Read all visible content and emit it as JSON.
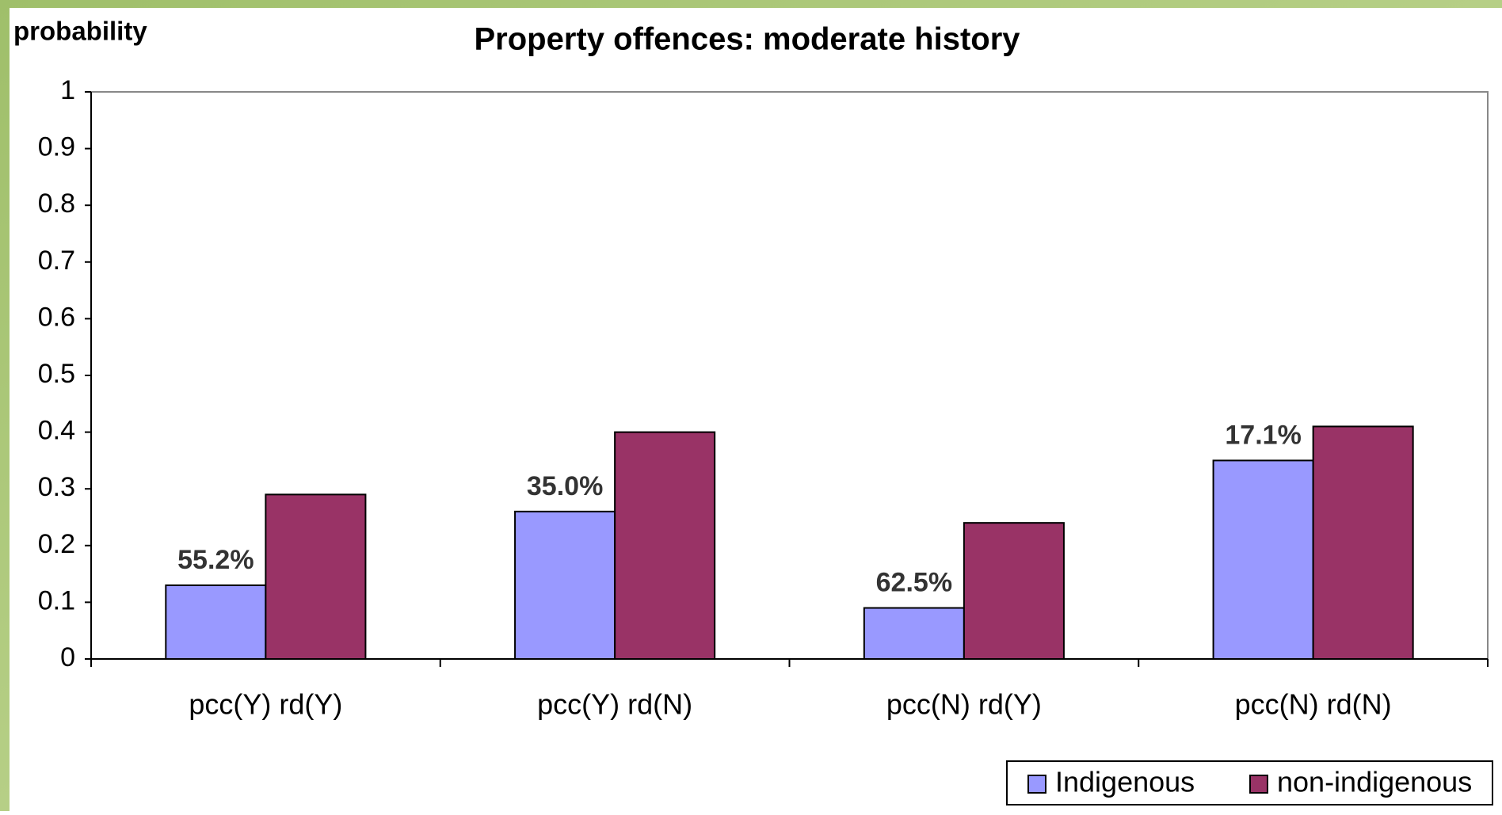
{
  "chart_data": {
    "type": "bar",
    "title": "Property offences: moderate history",
    "y_label": "probability",
    "categories": [
      "pcc(Y) rd(Y)",
      "pcc(Y) rd(N)",
      "pcc(N) rd(Y)",
      "pcc(N) rd(N)"
    ],
    "series": [
      {
        "name": "Indigenous",
        "color": "#9999ff",
        "values": [
          0.13,
          0.26,
          0.09,
          0.35
        ]
      },
      {
        "name": "non-indigenous",
        "color": "#993366",
        "values": [
          0.29,
          0.4,
          0.24,
          0.41
        ]
      }
    ],
    "annotations": [
      "55.2%",
      "35.0%",
      "62.5%",
      "17.1%"
    ],
    "ylim": [
      0,
      1
    ],
    "yticks": [
      0,
      0.1,
      0.2,
      0.3,
      0.4,
      0.5,
      0.6,
      0.7,
      0.8,
      0.9,
      1
    ],
    "grid": false,
    "legend": "bottom-right"
  }
}
